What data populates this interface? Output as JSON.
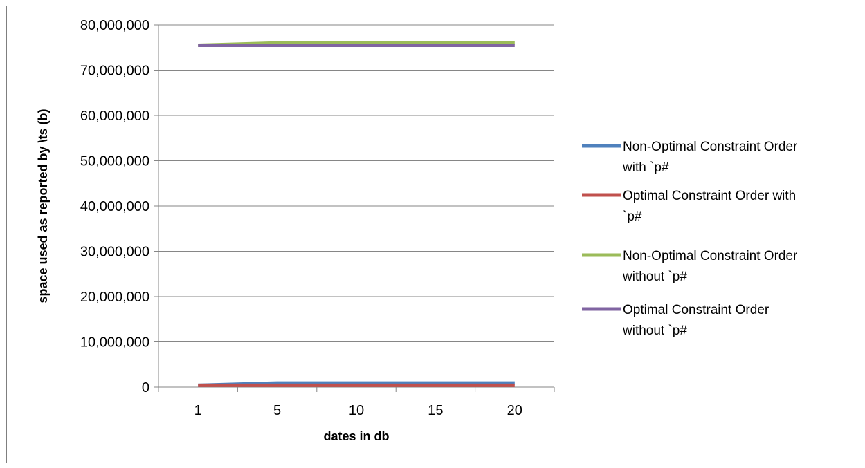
{
  "chart_data": {
    "type": "line",
    "title": "",
    "xlabel": "dates in db",
    "ylabel": "space used as reported by \\ts (b)",
    "categories": [
      "1",
      "5",
      "10",
      "15",
      "20"
    ],
    "ylim": [
      0,
      80000000
    ],
    "yticks": [
      0,
      10000000,
      20000000,
      30000000,
      40000000,
      50000000,
      60000000,
      70000000,
      80000000
    ],
    "ytick_labels": [
      "0",
      "10,000,000",
      "20,000,000",
      "30,000,000",
      "40,000,000",
      "50,000,000",
      "60,000,000",
      "70,000,000",
      "80,000,000"
    ],
    "grid": true,
    "legend_position": "right",
    "series": [
      {
        "name": "Non-Optimal Constraint Order with `p#",
        "legend_lines": [
          "Non-Optimal Constraint Order",
          "with `p#"
        ],
        "color": "#4f81bd",
        "values": [
          400000,
          900000,
          900000,
          900000,
          900000
        ]
      },
      {
        "name": "Optimal Constraint Order with `p#",
        "legend_lines": [
          "Optimal Constraint Order with",
          "`p#"
        ],
        "color": "#c0504d",
        "values": [
          400000,
          400000,
          400000,
          400000,
          400000
        ]
      },
      {
        "name": "Non-Optimal Constraint Order without `p#",
        "legend_lines": [
          "Non-Optimal Constraint Order",
          "without `p#"
        ],
        "color": "#9bbb59",
        "values": [
          75500000,
          76000000,
          76000000,
          76000000,
          76000000
        ]
      },
      {
        "name": "Optimal Constraint Order without `p#",
        "legend_lines": [
          "Optimal Constraint Order",
          "without `p#"
        ],
        "color": "#8064a2",
        "values": [
          75500000,
          75500000,
          75500000,
          75500000,
          75500000
        ]
      }
    ]
  }
}
